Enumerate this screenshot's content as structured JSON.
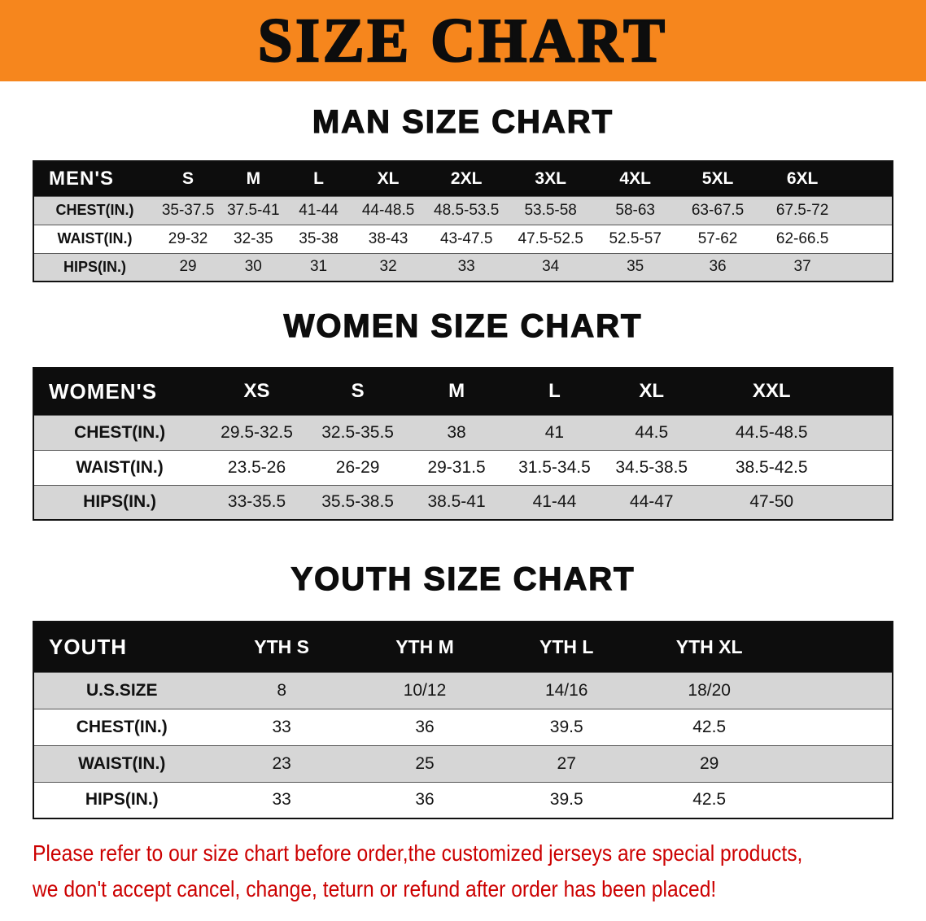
{
  "banner": {
    "title": "SIZE CHART",
    "background": "#F6861D",
    "text_color": "#0d0d0d"
  },
  "men": {
    "heading": "MAN SIZE CHART",
    "table": {
      "header": [
        "MEN'S",
        "S",
        "M",
        "L",
        "XL",
        "2XL",
        "3XL",
        "4XL",
        "5XL",
        "6XL"
      ],
      "rows": [
        {
          "label": "CHEST(IN.)",
          "values": [
            "35-37.5",
            "37.5-41",
            "41-44",
            "44-48.5",
            "48.5-53.5",
            "53.5-58",
            "58-63",
            "63-67.5",
            "67.5-72"
          ]
        },
        {
          "label": "WAIST(IN.)",
          "values": [
            "29-32",
            "32-35",
            "35-38",
            "38-43",
            "43-47.5",
            "47.5-52.5",
            "52.5-57",
            "57-62",
            "62-66.5"
          ]
        },
        {
          "label": "HIPS(IN.)",
          "values": [
            "29",
            "30",
            "31",
            "32",
            "33",
            "34",
            "35",
            "36",
            "37"
          ]
        }
      ]
    }
  },
  "women": {
    "heading": "WOMEN SIZE CHART",
    "table": {
      "header": [
        "WOMEN'S",
        "XS",
        "S",
        "M",
        "L",
        "XL",
        "XXL"
      ],
      "rows": [
        {
          "label": "CHEST(IN.)",
          "values": [
            "29.5-32.5",
            "32.5-35.5",
            "38",
            "41",
            "44.5",
            "44.5-48.5"
          ]
        },
        {
          "label": "WAIST(IN.)",
          "values": [
            "23.5-26",
            "26-29",
            "29-31.5",
            "31.5-34.5",
            "34.5-38.5",
            "38.5-42.5"
          ]
        },
        {
          "label": "HIPS(IN.)",
          "values": [
            "33-35.5",
            "35.5-38.5",
            "38.5-41",
            "41-44",
            "44-47",
            "47-50"
          ]
        }
      ]
    }
  },
  "youth": {
    "heading": "YOUTH SIZE CHART",
    "table": {
      "header": [
        "YOUTH",
        "YTH S",
        "YTH M",
        "YTH L",
        "YTH XL"
      ],
      "rows": [
        {
          "label": "U.S.SIZE",
          "values": [
            "8",
            "10/12",
            "14/16",
            "18/20"
          ]
        },
        {
          "label": "CHEST(IN.)",
          "values": [
            "33",
            "36",
            "39.5",
            "42.5"
          ]
        },
        {
          "label": "WAIST(IN.)",
          "values": [
            "23",
            "25",
            "27",
            "29"
          ]
        },
        {
          "label": "HIPS(IN.)",
          "values": [
            "33",
            "36",
            "39.5",
            "42.5"
          ]
        }
      ]
    }
  },
  "disclaimer": {
    "color": "#CC0000",
    "lines": [
      "Please refer to our size chart before order,the customized jerseys are special products,",
      "we don't accept cancel, change, teturn or refund after order has been placed!"
    ]
  }
}
